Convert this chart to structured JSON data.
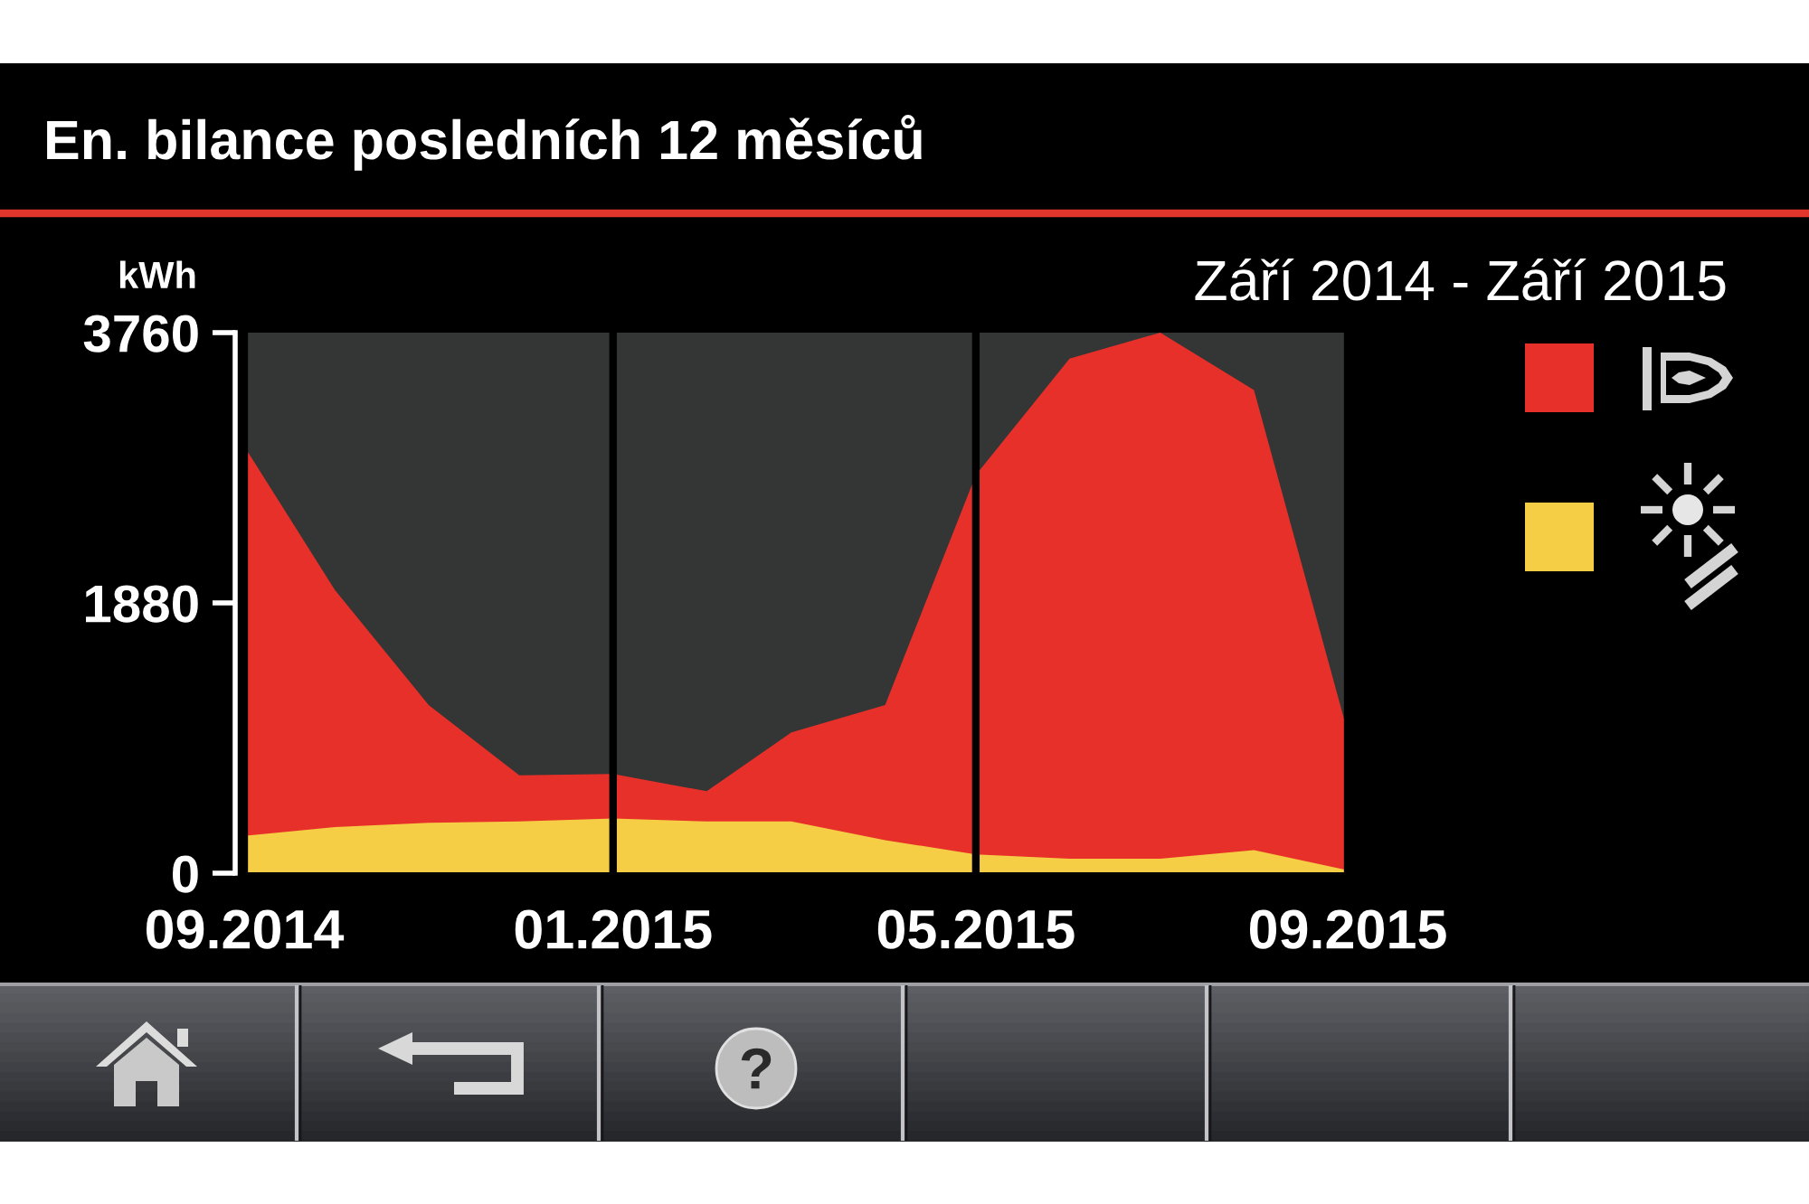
{
  "chart_data": {
    "type": "area",
    "title": "En. bilance posledních 12 měsíců",
    "subtitle": "Září 2014 - Září 2015",
    "ylabel": "kWh",
    "x": [
      "2014-09",
      "2014-10",
      "2014-11",
      "2014-12",
      "2015-01",
      "2015-02",
      "2015-03",
      "2015-04",
      "2015-05",
      "2015-06",
      "2015-07",
      "2015-08",
      "2015-09"
    ],
    "series": [
      {
        "color": "#e8302a",
        "values": [
          2970,
          1970,
          1170,
          680,
          690,
          570,
          980,
          1170,
          2770,
          3580,
          3760,
          3360,
          980
        ]
      },
      {
        "color": "#f6ce46",
        "values": [
          260,
          320,
          350,
          360,
          380,
          360,
          360,
          230,
          130,
          100,
          100,
          160,
          20
        ]
      }
    ],
    "xlim": [
      "2014-09",
      "2015-09"
    ],
    "xticks": [
      {
        "value": "2014-09",
        "label": "09.2014"
      },
      {
        "value": "2015-01",
        "label": "01.2015"
      },
      {
        "value": "2015-05",
        "label": "05.2015"
      },
      {
        "value": "2015-09",
        "label": "09.2015"
      }
    ],
    "ylim": [
      0,
      3760
    ],
    "yticks": [
      0,
      1880,
      3760
    ],
    "grid": "x"
  }
}
